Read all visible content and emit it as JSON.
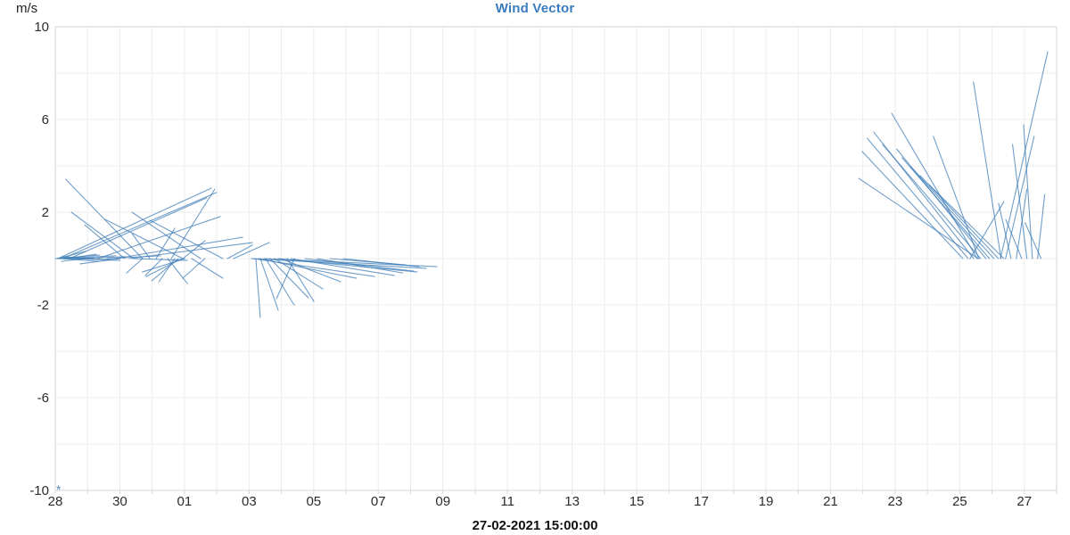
{
  "chart": {
    "title": "Wind Vector",
    "unit_label": "m/s",
    "x_label": "27-02-2021 15:00:00"
  },
  "colors": {
    "title": "#3a7cbd",
    "vector_stroke": "#3f7eb8",
    "grid": "#ededed",
    "axis_border": "#d4d4d4",
    "tick_text": "#2b2b2b",
    "x_label_text": "#111111",
    "background": "#ffffff"
  },
  "chart_data": {
    "type": "vector",
    "title": "Wind Vector",
    "ylabel": "m/s",
    "xlabel": "27-02-2021 15:00:00",
    "ylim": [
      -10,
      10
    ],
    "y_tick_values": [
      10,
      6,
      2,
      -2,
      -6,
      -10
    ],
    "y_grid_step": 2,
    "days_span": 31,
    "x_grid_step_days": 1,
    "x_tick_labels": [
      "28",
      "30",
      "01",
      "03",
      "05",
      "07",
      "09",
      "11",
      "13",
      "15",
      "17",
      "19",
      "21",
      "23",
      "25",
      "27"
    ],
    "x_tick_days": [
      0,
      2,
      4,
      6,
      8,
      10,
      12,
      14,
      16,
      18,
      20,
      22,
      24,
      26,
      28,
      30
    ],
    "grid": true,
    "legend": "none",
    "corner_marker": {
      "symbol": "*",
      "day": 0.1,
      "value": -9.9
    },
    "vector_columns": [
      "day_offset_from_28",
      "u_ms",
      "v_ms"
    ],
    "vectors": [
      [
        0.0,
        1.92,
        0.15
      ],
      [
        0.06,
        1.23,
        0.31
      ],
      [
        0.11,
        2.46,
        0.12
      ],
      [
        0.17,
        1.62,
        -0.12
      ],
      [
        0.22,
        2.12,
        -0.04
      ],
      [
        0.36,
        1.27,
        0.19
      ],
      [
        0.5,
        2.31,
        0.08
      ],
      [
        0.63,
        1.92,
        -0.08
      ],
      [
        0.91,
        -1.0,
        -0.12
      ],
      [
        1.19,
        -1.31,
        0.08
      ],
      [
        1.6,
        2.31,
        0.12
      ],
      [
        2.01,
        -1.73,
        -0.23
      ],
      [
        2.43,
        2.31,
        -0.08
      ],
      [
        2.7,
        -3.31,
        3.42
      ],
      [
        2.43,
        -2.69,
        2.0
      ],
      [
        2.15,
        -1.73,
        1.46
      ],
      [
        0.08,
        6.62,
        3.04
      ],
      [
        0.22,
        6.65,
        2.85
      ],
      [
        0.44,
        5.92,
        2.62
      ],
      [
        1.32,
        5.27,
        1.81
      ],
      [
        3.95,
        -3.35,
        1.69
      ],
      [
        4.5,
        -2.96,
        2.0
      ],
      [
        5.19,
        -3.15,
        1.65
      ],
      [
        3.59,
        1.88,
        3.0
      ],
      [
        2.93,
        -0.77,
        1.08
      ],
      [
        3.12,
        0.81,
        1.31
      ],
      [
        3.31,
        -0.73,
        -0.73
      ],
      [
        3.48,
        0.85,
        -1.08
      ],
      [
        3.7,
        -0.69,
        -1.0
      ],
      [
        2.7,
        -0.69,
        -0.62
      ],
      [
        3.95,
        0.96,
        0.77
      ],
      [
        4.22,
        1.35,
        -0.85
      ],
      [
        4.63,
        -0.96,
        -0.85
      ],
      [
        3.81,
        -1.15,
        -0.96
      ],
      [
        3.92,
        -1.54,
        -0.77
      ],
      [
        4.02,
        -1.85,
        -0.58
      ],
      [
        1.88,
        5.46,
        0.92
      ],
      [
        2.29,
        5.31,
        0.69
      ],
      [
        5.33,
        1.08,
        0.58
      ],
      [
        5.52,
        1.54,
        0.69
      ],
      [
        6.21,
        0.19,
        -2.54
      ],
      [
        6.35,
        0.77,
        -2.23
      ],
      [
        6.51,
        1.23,
        -2.0
      ],
      [
        6.65,
        1.65,
        -1.69
      ],
      [
        6.79,
        2.08,
        -1.31
      ],
      [
        6.98,
        2.58,
        -1.0
      ],
      [
        7.18,
        1.15,
        -1.85
      ],
      [
        7.4,
        -0.77,
        -1.73
      ],
      [
        6.07,
        7.54,
        -0.42
      ],
      [
        6.46,
        7.46,
        -0.35
      ],
      [
        6.9,
        6.0,
        -0.58
      ],
      [
        7.29,
        4.46,
        -0.73
      ],
      [
        7.73,
        4.69,
        -0.54
      ],
      [
        8.11,
        3.69,
        -0.62
      ],
      [
        8.5,
        3.27,
        -0.27
      ],
      [
        8.92,
        3.27,
        -0.35
      ],
      [
        6.13,
        5.23,
        -0.77
      ],
      [
        6.29,
        4.23,
        -0.85
      ],
      [
        28.1,
        -4.35,
        4.62
      ],
      [
        28.26,
        -4.35,
        5.19
      ],
      [
        28.43,
        -4.31,
        5.46
      ],
      [
        28.54,
        -3.69,
        6.27
      ],
      [
        28.65,
        -4.23,
        4.92
      ],
      [
        28.81,
        -3.85,
        4.73
      ],
      [
        28.92,
        -3.77,
        4.35
      ],
      [
        29.06,
        -3.58,
        3.96
      ],
      [
        29.2,
        -3.38,
        3.58
      ],
      [
        29.37,
        -3.23,
        3.19
      ],
      [
        28.57,
        -5.15,
        3.46
      ],
      [
        28.59,
        -1.96,
        5.27
      ],
      [
        29.28,
        -1.19,
        7.62
      ],
      [
        29.26,
        2.04,
        8.92
      ],
      [
        29.42,
        1.23,
        5.27
      ],
      [
        29.59,
        -0.54,
        2.38
      ],
      [
        29.75,
        0.46,
        3.0
      ],
      [
        29.92,
        -0.69,
        1.69
      ],
      [
        30.08,
        -0.62,
        4.92
      ],
      [
        30.25,
        -0.38,
        5.77
      ],
      [
        30.41,
        0.31,
        2.77
      ],
      [
        30.52,
        -0.69,
        1.54
      ],
      [
        28.32,
        1.46,
        2.46
      ]
    ]
  }
}
